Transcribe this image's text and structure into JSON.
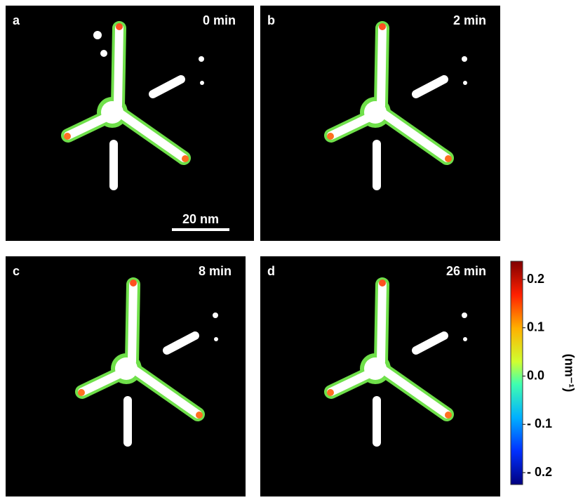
{
  "panels": [
    {
      "letter": "a",
      "time": "0 min",
      "scale_bar": "20 nm"
    },
    {
      "letter": "b",
      "time": "2 min"
    },
    {
      "letter": "c",
      "time": "8 min"
    },
    {
      "letter": "d",
      "time": "26 min"
    }
  ],
  "colorbar": {
    "ticks": [
      "0.2",
      "0.1",
      "0.0",
      "- 0.1",
      "- 0.2"
    ],
    "label": "(nm⁻¹)"
  }
}
